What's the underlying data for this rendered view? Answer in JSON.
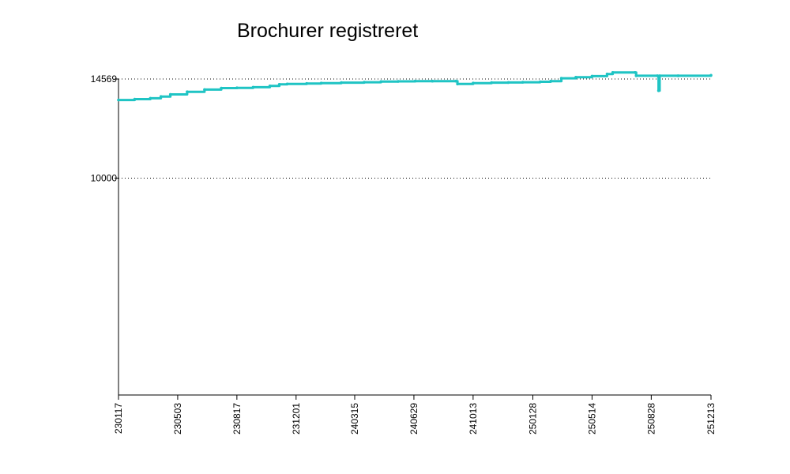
{
  "chart_data": {
    "type": "line",
    "title": "Brochurer registreret",
    "xlabel": "",
    "ylabel": "",
    "x_tick_labels": [
      "230117",
      "230503",
      "230817",
      "231201",
      "240315",
      "240629",
      "241013",
      "250128",
      "250514",
      "250828",
      "251213"
    ],
    "y_ticks": [
      {
        "value": 10000,
        "label": "10000"
      },
      {
        "value": 14569,
        "label": "14569"
      }
    ],
    "ylim": [
      0,
      14569
    ],
    "grid": "dotted horizontal at y ticks",
    "legend": "none",
    "series": [
      {
        "color": "#1fc4c4",
        "points": [
          [
            "2023-01-17",
            13600
          ],
          [
            "2023-02-15",
            13640
          ],
          [
            "2023-03-15",
            13680
          ],
          [
            "2023-04-03",
            13760
          ],
          [
            "2023-04-20",
            13860
          ],
          [
            "2023-05-20",
            13980
          ],
          [
            "2023-06-20",
            14080
          ],
          [
            "2023-07-20",
            14150
          ],
          [
            "2023-08-17",
            14160
          ],
          [
            "2023-09-15",
            14190
          ],
          [
            "2023-10-15",
            14250
          ],
          [
            "2023-11-01",
            14320
          ],
          [
            "2023-11-15",
            14340
          ],
          [
            "2023-12-20",
            14360
          ],
          [
            "2024-01-15",
            14380
          ],
          [
            "2024-02-20",
            14400
          ],
          [
            "2024-04-01",
            14420
          ],
          [
            "2024-05-01",
            14450
          ],
          [
            "2024-06-01",
            14460
          ],
          [
            "2024-07-01",
            14470
          ],
          [
            "2024-08-01",
            14470
          ],
          [
            "2024-09-12",
            14470
          ],
          [
            "2024-09-15",
            14340
          ],
          [
            "2024-10-13",
            14380
          ],
          [
            "2024-11-15",
            14400
          ],
          [
            "2024-12-15",
            14410
          ],
          [
            "2025-01-10",
            14420
          ],
          [
            "2025-02-10",
            14440
          ],
          [
            "2025-03-01",
            14470
          ],
          [
            "2025-03-20",
            14600
          ],
          [
            "2025-04-15",
            14650
          ],
          [
            "2025-05-14",
            14700
          ],
          [
            "2025-06-10",
            14800
          ],
          [
            "2025-06-20",
            14869
          ],
          [
            "2025-07-30",
            14869
          ],
          [
            "2025-08-01",
            14720
          ],
          [
            "2025-09-08",
            14720
          ],
          [
            "2025-09-10",
            14030
          ],
          [
            "2025-09-12",
            14720
          ],
          [
            "2025-10-15",
            14720
          ],
          [
            "2025-12-13",
            14740
          ]
        ]
      }
    ]
  }
}
